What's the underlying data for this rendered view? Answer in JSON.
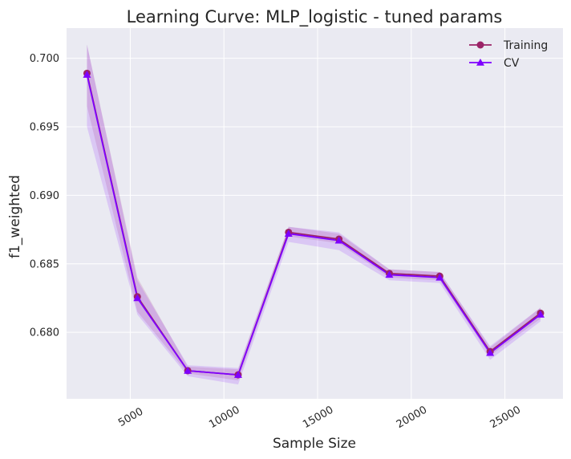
{
  "chart_data": {
    "type": "line",
    "title": "Learning Curve: MLP_logistic - tuned params",
    "xlabel": "Sample Size",
    "ylabel": "f1_weighted",
    "xlim": [
      1600,
      28100
    ],
    "ylim": [
      0.67515,
      0.7022
    ],
    "x_ticks": [
      5000,
      10000,
      15000,
      20000,
      25000
    ],
    "x_tick_labels": [
      "5000",
      "10000",
      "15000",
      "20000",
      "25000"
    ],
    "y_ticks": [
      0.68,
      0.685,
      0.69,
      0.695,
      0.7
    ],
    "y_tick_labels": [
      "0.680",
      "0.685",
      "0.690",
      "0.695",
      "0.700"
    ],
    "grid": true,
    "legend_position": "top-right",
    "x": [
      2690,
      5380,
      8070,
      10760,
      13450,
      16140,
      18830,
      21520,
      24210,
      26900
    ],
    "series": [
      {
        "name": "Training",
        "color": "#9b2367",
        "marker": "circle",
        "values": [
          0.6989,
          0.6826,
          0.6772,
          0.6769,
          0.6873,
          0.6868,
          0.6843,
          0.6841,
          0.6786,
          0.6814
        ],
        "band_lower": [
          0.6965,
          0.6815,
          0.677,
          0.6765,
          0.687,
          0.6865,
          0.684,
          0.6838,
          0.6783,
          0.681
        ],
        "band_upper": [
          0.701,
          0.684,
          0.6775,
          0.6773,
          0.6877,
          0.6872,
          0.6846,
          0.6844,
          0.6789,
          0.6818
        ]
      },
      {
        "name": "CV",
        "color": "#7f00ff",
        "marker": "triangle",
        "values": [
          0.6988,
          0.6825,
          0.6772,
          0.6769,
          0.6872,
          0.6867,
          0.6842,
          0.684,
          0.6785,
          0.6813
        ],
        "band_lower": [
          0.695,
          0.6813,
          0.6768,
          0.6762,
          0.6866,
          0.686,
          0.6838,
          0.6836,
          0.678,
          0.6808
        ],
        "band_upper": [
          0.701,
          0.6838,
          0.6776,
          0.6774,
          0.6877,
          0.6873,
          0.6846,
          0.6844,
          0.679,
          0.6818
        ]
      }
    ]
  }
}
